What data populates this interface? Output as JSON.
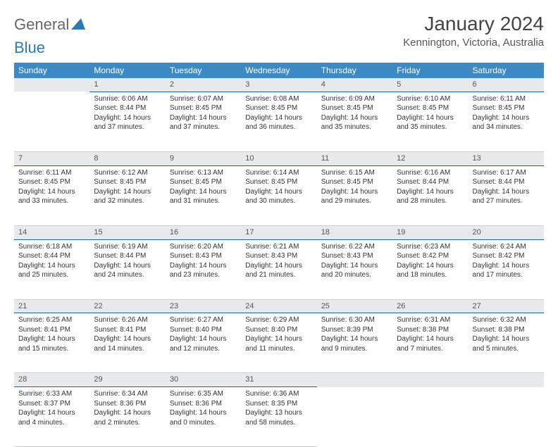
{
  "logo": {
    "text1": "General",
    "text2": "Blue"
  },
  "title": "January 2024",
  "location": "Kennington, Victoria, Australia",
  "colors": {
    "header_bg": "#3d89c3",
    "header_fg": "#ffffff",
    "daynum_bg": "#e7e9eb",
    "day_border": "#2a5f8a",
    "row_border": "#d0d0d0",
    "text": "#333333",
    "title": "#444444",
    "logo_blue": "#2a7ab9"
  },
  "weekdays": [
    "Sunday",
    "Monday",
    "Tuesday",
    "Wednesday",
    "Thursday",
    "Friday",
    "Saturday"
  ],
  "weeks": [
    {
      "nums": [
        "",
        "1",
        "2",
        "3",
        "4",
        "5",
        "6"
      ],
      "cells": [
        null,
        {
          "sr": "Sunrise: 6:06 AM",
          "ss": "Sunset: 8:44 PM",
          "d1": "Daylight: 14 hours",
          "d2": "and 37 minutes."
        },
        {
          "sr": "Sunrise: 6:07 AM",
          "ss": "Sunset: 8:45 PM",
          "d1": "Daylight: 14 hours",
          "d2": "and 37 minutes."
        },
        {
          "sr": "Sunrise: 6:08 AM",
          "ss": "Sunset: 8:45 PM",
          "d1": "Daylight: 14 hours",
          "d2": "and 36 minutes."
        },
        {
          "sr": "Sunrise: 6:09 AM",
          "ss": "Sunset: 8:45 PM",
          "d1": "Daylight: 14 hours",
          "d2": "and 35 minutes."
        },
        {
          "sr": "Sunrise: 6:10 AM",
          "ss": "Sunset: 8:45 PM",
          "d1": "Daylight: 14 hours",
          "d2": "and 35 minutes."
        },
        {
          "sr": "Sunrise: 6:11 AM",
          "ss": "Sunset: 8:45 PM",
          "d1": "Daylight: 14 hours",
          "d2": "and 34 minutes."
        }
      ]
    },
    {
      "nums": [
        "7",
        "8",
        "9",
        "10",
        "11",
        "12",
        "13"
      ],
      "cells": [
        {
          "sr": "Sunrise: 6:11 AM",
          "ss": "Sunset: 8:45 PM",
          "d1": "Daylight: 14 hours",
          "d2": "and 33 minutes."
        },
        {
          "sr": "Sunrise: 6:12 AM",
          "ss": "Sunset: 8:45 PM",
          "d1": "Daylight: 14 hours",
          "d2": "and 32 minutes."
        },
        {
          "sr": "Sunrise: 6:13 AM",
          "ss": "Sunset: 8:45 PM",
          "d1": "Daylight: 14 hours",
          "d2": "and 31 minutes."
        },
        {
          "sr": "Sunrise: 6:14 AM",
          "ss": "Sunset: 8:45 PM",
          "d1": "Daylight: 14 hours",
          "d2": "and 30 minutes."
        },
        {
          "sr": "Sunrise: 6:15 AM",
          "ss": "Sunset: 8:45 PM",
          "d1": "Daylight: 14 hours",
          "d2": "and 29 minutes."
        },
        {
          "sr": "Sunrise: 6:16 AM",
          "ss": "Sunset: 8:44 PM",
          "d1": "Daylight: 14 hours",
          "d2": "and 28 minutes."
        },
        {
          "sr": "Sunrise: 6:17 AM",
          "ss": "Sunset: 8:44 PM",
          "d1": "Daylight: 14 hours",
          "d2": "and 27 minutes."
        }
      ]
    },
    {
      "nums": [
        "14",
        "15",
        "16",
        "17",
        "18",
        "19",
        "20"
      ],
      "cells": [
        {
          "sr": "Sunrise: 6:18 AM",
          "ss": "Sunset: 8:44 PM",
          "d1": "Daylight: 14 hours",
          "d2": "and 25 minutes."
        },
        {
          "sr": "Sunrise: 6:19 AM",
          "ss": "Sunset: 8:44 PM",
          "d1": "Daylight: 14 hours",
          "d2": "and 24 minutes."
        },
        {
          "sr": "Sunrise: 6:20 AM",
          "ss": "Sunset: 8:43 PM",
          "d1": "Daylight: 14 hours",
          "d2": "and 23 minutes."
        },
        {
          "sr": "Sunrise: 6:21 AM",
          "ss": "Sunset: 8:43 PM",
          "d1": "Daylight: 14 hours",
          "d2": "and 21 minutes."
        },
        {
          "sr": "Sunrise: 6:22 AM",
          "ss": "Sunset: 8:43 PM",
          "d1": "Daylight: 14 hours",
          "d2": "and 20 minutes."
        },
        {
          "sr": "Sunrise: 6:23 AM",
          "ss": "Sunset: 8:42 PM",
          "d1": "Daylight: 14 hours",
          "d2": "and 18 minutes."
        },
        {
          "sr": "Sunrise: 6:24 AM",
          "ss": "Sunset: 8:42 PM",
          "d1": "Daylight: 14 hours",
          "d2": "and 17 minutes."
        }
      ]
    },
    {
      "nums": [
        "21",
        "22",
        "23",
        "24",
        "25",
        "26",
        "27"
      ],
      "cells": [
        {
          "sr": "Sunrise: 6:25 AM",
          "ss": "Sunset: 8:41 PM",
          "d1": "Daylight: 14 hours",
          "d2": "and 15 minutes."
        },
        {
          "sr": "Sunrise: 6:26 AM",
          "ss": "Sunset: 8:41 PM",
          "d1": "Daylight: 14 hours",
          "d2": "and 14 minutes."
        },
        {
          "sr": "Sunrise: 6:27 AM",
          "ss": "Sunset: 8:40 PM",
          "d1": "Daylight: 14 hours",
          "d2": "and 12 minutes."
        },
        {
          "sr": "Sunrise: 6:29 AM",
          "ss": "Sunset: 8:40 PM",
          "d1": "Daylight: 14 hours",
          "d2": "and 11 minutes."
        },
        {
          "sr": "Sunrise: 6:30 AM",
          "ss": "Sunset: 8:39 PM",
          "d1": "Daylight: 14 hours",
          "d2": "and 9 minutes."
        },
        {
          "sr": "Sunrise: 6:31 AM",
          "ss": "Sunset: 8:38 PM",
          "d1": "Daylight: 14 hours",
          "d2": "and 7 minutes."
        },
        {
          "sr": "Sunrise: 6:32 AM",
          "ss": "Sunset: 8:38 PM",
          "d1": "Daylight: 14 hours",
          "d2": "and 5 minutes."
        }
      ]
    },
    {
      "nums": [
        "28",
        "29",
        "30",
        "31",
        "",
        "",
        ""
      ],
      "cells": [
        {
          "sr": "Sunrise: 6:33 AM",
          "ss": "Sunset: 8:37 PM",
          "d1": "Daylight: 14 hours",
          "d2": "and 4 minutes."
        },
        {
          "sr": "Sunrise: 6:34 AM",
          "ss": "Sunset: 8:36 PM",
          "d1": "Daylight: 14 hours",
          "d2": "and 2 minutes."
        },
        {
          "sr": "Sunrise: 6:35 AM",
          "ss": "Sunset: 8:36 PM",
          "d1": "Daylight: 14 hours",
          "d2": "and 0 minutes."
        },
        {
          "sr": "Sunrise: 6:36 AM",
          "ss": "Sunset: 8:35 PM",
          "d1": "Daylight: 13 hours",
          "d2": "and 58 minutes."
        },
        null,
        null,
        null
      ]
    }
  ]
}
